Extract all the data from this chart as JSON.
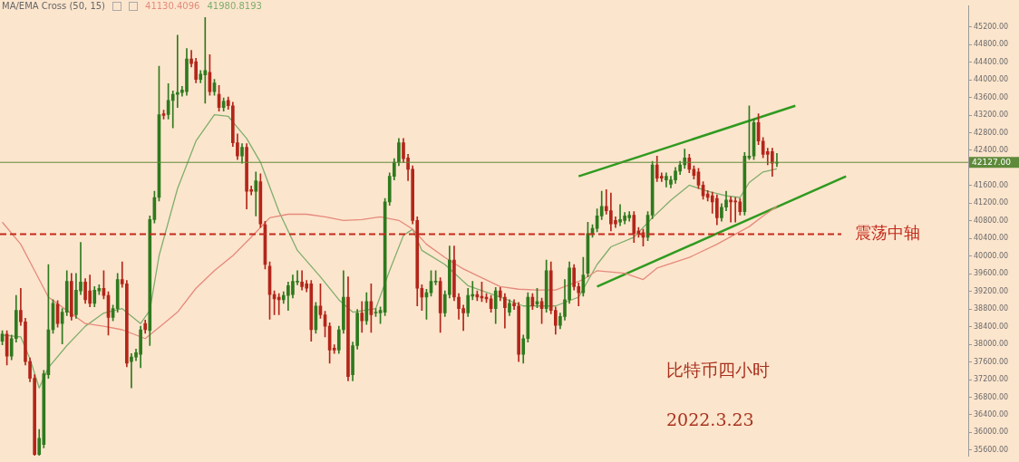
{
  "chart_data": {
    "type": "candlestick",
    "title": "MA/EMA Cross (50, 15)",
    "categories": [
      null,
      null,
      null,
      null,
      null,
      null,
      null,
      null,
      null,
      null,
      null,
      null,
      null,
      null,
      null,
      null,
      null,
      null,
      null,
      null,
      null,
      null,
      null,
      null,
      null,
      null,
      null,
      null,
      null,
      null,
      null,
      null,
      null,
      null,
      null,
      null,
      null,
      null,
      null,
      null,
      null,
      null,
      null,
      null,
      null,
      null,
      null,
      null,
      null,
      null,
      null,
      null,
      null,
      null,
      null,
      null,
      null,
      null,
      null,
      null,
      null,
      null,
      null,
      null,
      null,
      null,
      null,
      null,
      null,
      null,
      null,
      null,
      null,
      null,
      null,
      null,
      null,
      null,
      null,
      null,
      null,
      null,
      null,
      null,
      null,
      null,
      null,
      null,
      null,
      null,
      null,
      null,
      null,
      null,
      null,
      null,
      null,
      null,
      null,
      null,
      null,
      null,
      null,
      null,
      null,
      null,
      null,
      null,
      null,
      null,
      null,
      null,
      null,
      null,
      null,
      null,
      null,
      null,
      null,
      null,
      null,
      null,
      null,
      null,
      null,
      null,
      null,
      null,
      null,
      null,
      null,
      null,
      null,
      null,
      null,
      null,
      null,
      null,
      null,
      null,
      null,
      null,
      null,
      null,
      null,
      null,
      null,
      null,
      null,
      null,
      null,
      null,
      null,
      null,
      null,
      null,
      null,
      null,
      null,
      null,
      null,
      null,
      null,
      null,
      null,
      null,
      null,
      null,
      null,
      null,
      null,
      null,
      null,
      null,
      null,
      null,
      null,
      null,
      null,
      null,
      null,
      null,
      null,
      null,
      null,
      null,
      null,
      null,
      null,
      null,
      null,
      null,
      null,
      null,
      null,
      null,
      null,
      null,
      null,
      null,
      null,
      null,
      null,
      null,
      null,
      null,
      null,
      null,
      null,
      null
    ],
    "ohlc": [
      [
        38070,
        38310,
        37990,
        38230
      ],
      [
        38230,
        38310,
        37530,
        37730
      ],
      [
        37730,
        38210,
        37650,
        38130
      ],
      [
        38130,
        39110,
        38050,
        38770
      ],
      [
        38770,
        39270,
        38430,
        38510
      ],
      [
        38510,
        38590,
        37530,
        37610
      ],
      [
        37610,
        37690,
        37150,
        37230
      ],
      [
        37230,
        37310,
        35480,
        35500
      ],
      [
        35500,
        36070,
        35480,
        35870
      ],
      [
        35730,
        37410,
        35650,
        37330
      ],
      [
        37310,
        39810,
        37230,
        38330
      ],
      [
        38330,
        39010,
        38250,
        38930
      ],
      [
        38910,
        38990,
        38390,
        38470
      ],
      [
        38470,
        38810,
        38010,
        38730
      ],
      [
        38730,
        39670,
        38650,
        39430
      ],
      [
        39430,
        39610,
        38550,
        38630
      ],
      [
        38670,
        39610,
        38590,
        39230
      ],
      [
        39210,
        40310,
        39130,
        39410
      ],
      [
        39410,
        39490,
        38930,
        39010
      ],
      [
        39210,
        39570,
        38850,
        38930
      ],
      [
        38930,
        39310,
        38850,
        39230
      ],
      [
        39210,
        39350,
        39130,
        39270
      ],
      [
        39270,
        39670,
        39030,
        39110
      ],
      [
        39110,
        39190,
        38210,
        38610
      ],
      [
        38610,
        38890,
        38530,
        38810
      ],
      [
        38810,
        39610,
        38730,
        39470
      ],
      [
        39470,
        39870,
        39290,
        39370
      ],
      [
        39370,
        39450,
        37490,
        37570
      ],
      [
        37610,
        37790,
        37010,
        37710
      ],
      [
        37710,
        37890,
        37630,
        37810
      ],
      [
        37770,
        38410,
        37470,
        38330
      ],
      [
        38470,
        38550,
        38250,
        38330
      ],
      [
        38310,
        40910,
        37970,
        40830
      ],
      [
        40830,
        41470,
        40750,
        41330
      ],
      [
        41330,
        44310,
        41250,
        43210
      ],
      [
        43230,
        43310,
        43110,
        43190
      ],
      [
        43210,
        43910,
        43110,
        43530
      ],
      [
        43530,
        43750,
        42910,
        43670
      ],
      [
        43670,
        45010,
        43370,
        43710
      ],
      [
        43710,
        43850,
        43630,
        43770
      ],
      [
        43730,
        44710,
        43650,
        44470
      ],
      [
        44470,
        44670,
        44290,
        44370
      ],
      [
        44410,
        44490,
        43930,
        44010
      ],
      [
        44010,
        44210,
        43930,
        44130
      ],
      [
        44110,
        45410,
        43470,
        44210
      ],
      [
        44170,
        44570,
        43650,
        43730
      ],
      [
        43730,
        44010,
        43650,
        43930
      ],
      [
        43670,
        43870,
        43290,
        43370
      ],
      [
        43370,
        43590,
        43290,
        43510
      ],
      [
        43530,
        43610,
        43330,
        43410
      ],
      [
        43410,
        43490,
        42490,
        42570
      ],
      [
        42570,
        42770,
        42190,
        42270
      ],
      [
        42270,
        42550,
        42110,
        42470
      ],
      [
        42470,
        42550,
        41070,
        41470
      ],
      [
        41510,
        41590,
        41390,
        41470
      ],
      [
        41470,
        41910,
        40910,
        41710
      ],
      [
        41690,
        41870,
        40650,
        40730
      ],
      [
        40710,
        40790,
        39710,
        39810
      ],
      [
        39770,
        39870,
        38570,
        39130
      ],
      [
        39130,
        39210,
        38670,
        39030
      ],
      [
        39070,
        39150,
        38670,
        39010
      ],
      [
        39010,
        39190,
        38930,
        39110
      ],
      [
        39110,
        39410,
        38770,
        39330
      ],
      [
        39130,
        39570,
        39050,
        39430
      ],
      [
        39410,
        39670,
        39350,
        39430
      ],
      [
        39410,
        39670,
        39230,
        39310
      ],
      [
        39370,
        39450,
        39190,
        39270
      ],
      [
        39370,
        39450,
        38070,
        38330
      ],
      [
        38330,
        38950,
        38250,
        38870
      ],
      [
        38870,
        39370,
        38590,
        38670
      ],
      [
        38670,
        38750,
        38170,
        38410
      ],
      [
        38410,
        38490,
        37570,
        37870
      ],
      [
        37910,
        37990,
        37790,
        37870
      ],
      [
        37870,
        38410,
        37790,
        38330
      ],
      [
        38330,
        39670,
        38250,
        39070
      ],
      [
        39070,
        39530,
        37170,
        37270
      ],
      [
        37310,
        38050,
        37170,
        37970
      ],
      [
        37970,
        38790,
        37890,
        38710
      ],
      [
        38710,
        38970,
        38270,
        38530
      ],
      [
        38530,
        39170,
        38450,
        38970
      ],
      [
        38970,
        39370,
        38270,
        38670
      ],
      [
        38710,
        38810,
        38630,
        38730
      ],
      [
        38710,
        38850,
        38470,
        38770
      ],
      [
        38730,
        41310,
        38650,
        41230
      ],
      [
        41230,
        41890,
        41150,
        41810
      ],
      [
        41810,
        42210,
        41730,
        42130
      ],
      [
        42130,
        42670,
        42050,
        42570
      ],
      [
        42570,
        42670,
        42130,
        42210
      ],
      [
        42230,
        42310,
        41710,
        41970
      ],
      [
        41970,
        42050,
        40730,
        40810
      ],
      [
        40810,
        40890,
        38870,
        39270
      ],
      [
        39270,
        39350,
        38770,
        39070
      ],
      [
        39070,
        39250,
        38570,
        39170
      ],
      [
        39170,
        39670,
        39090,
        39430
      ],
      [
        39410,
        39670,
        39350,
        39430
      ],
      [
        39430,
        39510,
        38270,
        38710
      ],
      [
        38710,
        39210,
        38630,
        39130
      ],
      [
        39130,
        40230,
        39050,
        39910
      ],
      [
        39910,
        40230,
        38990,
        39070
      ],
      [
        39070,
        39150,
        38570,
        38810
      ],
      [
        38810,
        38890,
        38310,
        38710
      ],
      [
        38710,
        39270,
        38630,
        39110
      ],
      [
        39090,
        39430,
        39010,
        39130
      ],
      [
        39130,
        39210,
        38990,
        39070
      ],
      [
        39090,
        39410,
        38970,
        39050
      ],
      [
        39070,
        39150,
        38950,
        39030
      ],
      [
        39030,
        39110,
        38730,
        38810
      ],
      [
        38810,
        39290,
        38470,
        39210
      ],
      [
        39210,
        39290,
        38990,
        39070
      ],
      [
        39070,
        39150,
        38370,
        38830
      ],
      [
        38730,
        39010,
        38650,
        38930
      ],
      [
        38930,
        39010,
        38790,
        38870
      ],
      [
        38870,
        38950,
        37610,
        37770
      ],
      [
        37770,
        38210,
        37570,
        38130
      ],
      [
        38130,
        39170,
        38050,
        39070
      ],
      [
        39070,
        39150,
        38790,
        38870
      ],
      [
        38910,
        39270,
        38830,
        38970
      ],
      [
        38970,
        39050,
        38470,
        38810
      ],
      [
        38810,
        39910,
        38730,
        39670
      ],
      [
        39670,
        39870,
        38690,
        38770
      ],
      [
        38770,
        38850,
        38230,
        38430
      ],
      [
        38430,
        38710,
        38350,
        38630
      ],
      [
        38630,
        39470,
        38550,
        39010
      ],
      [
        39010,
        39870,
        38930,
        39730
      ],
      [
        39730,
        39810,
        39230,
        39310
      ],
      [
        39310,
        39390,
        38870,
        39170
      ],
      [
        39170,
        39970,
        39090,
        39570
      ],
      [
        39610,
        40770,
        39530,
        40510
      ],
      [
        40510,
        40710,
        40430,
        40630
      ],
      [
        40630,
        41070,
        40550,
        40910
      ],
      [
        40910,
        41470,
        40830,
        41130
      ],
      [
        41130,
        41510,
        40950,
        41030
      ],
      [
        41030,
        41430,
        40570,
        40730
      ],
      [
        40810,
        40890,
        40650,
        40730
      ],
      [
        40770,
        41170,
        40690,
        40830
      ],
      [
        40810,
        40990,
        40730,
        40910
      ],
      [
        40870,
        41010,
        40790,
        40930
      ],
      [
        40930,
        41010,
        40310,
        40510
      ],
      [
        40570,
        40650,
        40430,
        40510
      ],
      [
        40530,
        40610,
        40230,
        40430
      ],
      [
        40430,
        41010,
        40350,
        40930
      ],
      [
        40930,
        42150,
        40850,
        42070
      ],
      [
        42070,
        42270,
        41690,
        41770
      ],
      [
        41810,
        41890,
        41690,
        41770
      ],
      [
        41730,
        41890,
        41570,
        41810
      ],
      [
        41630,
        41810,
        41550,
        41730
      ],
      [
        41730,
        42010,
        41650,
        41930
      ],
      [
        41930,
        42150,
        41850,
        42070
      ],
      [
        42070,
        42430,
        41990,
        42230
      ],
      [
        42230,
        42310,
        41890,
        41970
      ],
      [
        41970,
        42050,
        41750,
        41830
      ],
      [
        41910,
        41990,
        41530,
        41610
      ],
      [
        41610,
        41690,
        41290,
        41370
      ],
      [
        41410,
        41490,
        41250,
        41330
      ],
      [
        41370,
        41450,
        40970,
        41230
      ],
      [
        41310,
        41390,
        40710,
        40870
      ],
      [
        40870,
        41190,
        40790,
        41110
      ],
      [
        41110,
        41470,
        41030,
        41270
      ],
      [
        41270,
        41350,
        40770,
        41230
      ],
      [
        41250,
        41330,
        40770,
        41230
      ],
      [
        41230,
        41310,
        40930,
        41010
      ],
      [
        41010,
        42350,
        40930,
        42270
      ],
      [
        42230,
        43410,
        42190,
        42270
      ],
      [
        42270,
        43110,
        42190,
        43030
      ],
      [
        43030,
        43230,
        42530,
        42610
      ],
      [
        42610,
        42690,
        42230,
        42310
      ],
      [
        42370,
        42450,
        42070,
        42310
      ],
      [
        42370,
        42450,
        41810,
        42110
      ],
      [
        42110,
        42330,
        42030,
        42127
      ],
      null,
      null,
      null,
      null,
      null,
      null,
      null,
      null,
      null,
      null,
      null,
      null,
      null,
      null,
      null,
      null,
      null,
      null,
      null,
      null,
      null,
      null,
      null,
      null,
      null,
      null,
      null,
      null,
      null,
      null,
      null,
      null,
      null,
      null,
      null,
      null,
      null,
      null,
      null,
      null,
      null
    ],
    "series": [
      {
        "type": "line",
        "color": "#e58a7c",
        "values": [
          40770,
          null,
          null,
          null,
          40270,
          null,
          null,
          39670,
          null,
          null,
          39070,
          null,
          null,
          null,
          38770,
          null,
          null,
          null,
          38470,
          null,
          null,
          null,
          38410,
          null,
          null,
          null,
          38330,
          null,
          null,
          null,
          null,
          38130,
          null,
          null,
          null,
          38470,
          null,
          null,
          38730,
          null,
          null,
          null,
          39270,
          null,
          null,
          null,
          39670,
          null,
          null,
          null,
          40010,
          null,
          null,
          null,
          40430,
          null,
          null,
          null,
          40870,
          null,
          null,
          null,
          40950,
          null,
          null,
          null,
          40950,
          null,
          null,
          null,
          40890,
          null,
          null,
          null,
          40810,
          null,
          null,
          null,
          40830,
          null,
          null,
          null,
          40890,
          null,
          null,
          null,
          40810,
          null,
          null,
          40610,
          null,
          null,
          40270,
          null,
          null,
          null,
          39970,
          null,
          null,
          null,
          39710,
          null,
          null,
          null,
          39510,
          null,
          null,
          null,
          39310,
          null,
          null,
          null,
          39250,
          null,
          null,
          null,
          39230,
          null,
          null,
          null,
          39230,
          null,
          null,
          39350,
          null,
          null,
          39470,
          null,
          null,
          39670,
          null,
          null,
          null,
          null,
          null,
          39610,
          null,
          null,
          null,
          39470,
          null,
          null,
          39730,
          null,
          null,
          null,
          null,
          null,
          null,
          39970,
          null,
          null,
          null,
          null,
          null,
          40270,
          null,
          null,
          null,
          null,
          null,
          null,
          40670,
          null,
          null,
          40910,
          null,
          null,
          41130,
          null,
          null,
          null,
          null,
          null,
          null,
          null,
          null,
          null,
          null,
          null,
          null,
          null,
          null,
          null,
          null,
          null,
          null,
          null,
          null,
          null,
          null,
          null,
          null,
          null,
          null,
          null,
          null,
          null,
          null,
          null,
          null,
          null,
          null,
          null,
          null,
          null,
          null,
          null,
          null,
          null
        ]
      },
      {
        "type": "line",
        "color": "#7fae6c",
        "values": [
          38210,
          null,
          null,
          null,
          38170,
          null,
          37670,
          null,
          37010,
          null,
          37470,
          null,
          null,
          null,
          37970,
          null,
          null,
          null,
          38410,
          null,
          null,
          null,
          38710,
          null,
          null,
          null,
          38810,
          null,
          null,
          null,
          38470,
          null,
          38770,
          null,
          40010,
          null,
          null,
          null,
          41530,
          null,
          null,
          null,
          42610,
          null,
          null,
          null,
          43210,
          null,
          null,
          43170,
          null,
          null,
          null,
          42670,
          null,
          null,
          42130,
          null,
          null,
          null,
          41010,
          null,
          null,
          null,
          40130,
          null,
          null,
          null,
          null,
          39530,
          null,
          null,
          null,
          39010,
          null,
          null,
          38730,
          null,
          null,
          null,
          null,
          38810,
          null,
          null,
          39670,
          null,
          null,
          40470,
          null,
          40610,
          null,
          40130,
          null,
          null,
          null,
          null,
          39810,
          null,
          null,
          null,
          null,
          39330,
          null,
          null,
          null,
          null,
          null,
          null,
          39070,
          null,
          null,
          null,
          null,
          38870,
          null,
          null,
          null,
          null,
          null,
          null,
          38870,
          null,
          null,
          null,
          null,
          39070,
          null,
          null,
          null,
          39810,
          null,
          null,
          40210,
          null,
          null,
          null,
          null,
          40430,
          null,
          null,
          null,
          40870,
          null,
          null,
          null,
          41270,
          null,
          null,
          null,
          41610,
          null,
          null,
          null,
          41470,
          null,
          null,
          null,
          41370,
          null,
          null,
          41330,
          null,
          41670,
          null,
          null,
          41910,
          null,
          null,
          41980,
          null,
          null,
          null,
          null,
          null,
          null,
          null,
          null,
          null,
          null,
          null,
          null,
          null,
          null,
          null,
          null,
          null,
          null,
          null,
          null,
          null,
          null,
          null,
          null,
          null,
          null,
          null,
          null,
          null,
          null,
          null,
          null,
          null,
          null,
          null,
          null,
          null,
          null,
          null,
          null,
          null
        ]
      },
      {
        "type": "line",
        "color": "#2f9a1f",
        "values": [
          null,
          null,
          null,
          null,
          null,
          null,
          null,
          null,
          null,
          null,
          null,
          null,
          null,
          null,
          null,
          null,
          null,
          null,
          null,
          null,
          null,
          null,
          null,
          null,
          null,
          null,
          null,
          null,
          null,
          null,
          null,
          null,
          null,
          null,
          null,
          null,
          null,
          null,
          null,
          null,
          null,
          null,
          null,
          null,
          null,
          null,
          null,
          null,
          null,
          null,
          null,
          null,
          null,
          null,
          null,
          null,
          null,
          null,
          null,
          null,
          null,
          null,
          null,
          null,
          null,
          null,
          null,
          null,
          null,
          null,
          null,
          null,
          null,
          null,
          null,
          null,
          null,
          null,
          null,
          null,
          null,
          null,
          null,
          null,
          null,
          null,
          null,
          null,
          null,
          null,
          null,
          null,
          null,
          null,
          null,
          null,
          null,
          null,
          null,
          null,
          null,
          null,
          null,
          null,
          null,
          null,
          null,
          null,
          null,
          null,
          null,
          null,
          null,
          null,
          null,
          null,
          null,
          null,
          null,
          null,
          null,
          null,
          null,
          null,
          null,
          41810,
          null,
          null,
          null,
          null,
          null,
          null,
          null,
          null,
          null,
          null,
          null,
          null,
          null,
          null,
          null,
          null,
          null,
          null,
          null,
          null,
          null,
          null,
          null,
          null,
          null,
          null,
          null,
          null,
          null,
          null,
          null,
          null,
          null,
          null,
          null,
          null,
          null,
          null,
          null,
          null,
          null,
          null,
          null,
          null,
          null,
          null,
          43410,
          null,
          null,
          null,
          null,
          null,
          null,
          null,
          null,
          null,
          null,
          null,
          null,
          null,
          null,
          null,
          null,
          null,
          null,
          null,
          null,
          null,
          null,
          null,
          null,
          null,
          null,
          null,
          null,
          null,
          null,
          null,
          null,
          null,
          null,
          null,
          null,
          null
        ]
      },
      {
        "type": "line",
        "color": "#2f9a1f",
        "values": [
          null,
          null,
          null,
          null,
          null,
          null,
          null,
          null,
          null,
          null,
          null,
          null,
          null,
          null,
          null,
          null,
          null,
          null,
          null,
          null,
          null,
          null,
          null,
          null,
          null,
          null,
          null,
          null,
          null,
          null,
          null,
          null,
          null,
          null,
          null,
          null,
          null,
          null,
          null,
          null,
          null,
          null,
          null,
          null,
          null,
          null,
          null,
          null,
          null,
          null,
          null,
          null,
          null,
          null,
          null,
          null,
          null,
          null,
          null,
          null,
          null,
          null,
          null,
          null,
          null,
          null,
          null,
          null,
          null,
          null,
          null,
          null,
          null,
          null,
          null,
          null,
          null,
          null,
          null,
          null,
          null,
          null,
          null,
          null,
          null,
          null,
          null,
          null,
          null,
          null,
          null,
          null,
          null,
          null,
          null,
          null,
          null,
          null,
          null,
          null,
          null,
          null,
          null,
          null,
          null,
          null,
          null,
          null,
          null,
          null,
          null,
          null,
          null,
          null,
          null,
          null,
          null,
          null,
          null,
          null,
          null,
          null,
          null,
          null,
          null,
          null,
          null,
          null,
          null,
          39310,
          null,
          null,
          null,
          null,
          null,
          null,
          null,
          null,
          null,
          null,
          null,
          null,
          null,
          null,
          null,
          null,
          null,
          null,
          null,
          null,
          null,
          null,
          null,
          null,
          null,
          null,
          null,
          null,
          null,
          null,
          null,
          null,
          null,
          null,
          null,
          null,
          null,
          null,
          null,
          null,
          null,
          null,
          null,
          null,
          null,
          null,
          null,
          null,
          null,
          null,
          null,
          null,
          null,
          41810,
          null,
          null,
          null,
          null,
          null,
          null,
          null,
          null,
          null,
          null,
          null,
          null,
          null,
          null,
          null,
          null,
          null,
          null,
          null,
          null,
          null,
          null,
          null,
          null,
          null,
          null
        ]
      }
    ],
    "ylim": [
      35470,
      45670
    ],
    "yticks": [
      {
        "value": 35600,
        "label": "35600.00"
      },
      {
        "value": 36000,
        "label": "36000.00"
      },
      {
        "value": 36400,
        "label": "36400.00"
      },
      {
        "value": 36800,
        "label": "36800.00"
      },
      {
        "value": 37200,
        "label": "37200.00"
      },
      {
        "value": 37600,
        "label": "37600.00"
      },
      {
        "value": 38000,
        "label": "38000.00"
      },
      {
        "value": 38400,
        "label": "38400.00"
      },
      {
        "value": 38800,
        "label": "38800.00"
      },
      {
        "value": 39200,
        "label": "39200.00"
      },
      {
        "value": 39600,
        "label": "39600.00"
      },
      {
        "value": 40000,
        "label": "40000.00"
      },
      {
        "value": 40400,
        "label": "40400.00"
      },
      {
        "value": 40800,
        "label": "40800.00"
      },
      {
        "value": 41200,
        "label": "41200.00"
      },
      {
        "value": 41600,
        "label": "41600.00"
      },
      {
        "value": 42400,
        "label": "42400.00"
      },
      {
        "value": 42800,
        "label": "42800.00"
      },
      {
        "value": 43200,
        "label": "43200.00"
      },
      {
        "value": 43600,
        "label": "43600.00"
      },
      {
        "value": 44000,
        "label": "44000.00"
      },
      {
        "value": 44400,
        "label": "44400.00"
      },
      {
        "value": 44800,
        "label": "44800.00"
      },
      {
        "value": 45200,
        "label": "45200.00"
      }
    ],
    "ref_lines": [
      {
        "axis": "y",
        "value": 40500,
        "label": "震荡中轴",
        "color": "#c42a1c",
        "line_style": "dashed"
      },
      {
        "axis": "y",
        "value": 42127,
        "label": "42127.00",
        "color": "#5e8a3a",
        "line_style": "solid"
      }
    ],
    "annotations": [
      "41130.4096",
      "41980.8193",
      "比特币四小时",
      "2022.3.23"
    ],
    "tick_labels": "y",
    "legend": false
  }
}
